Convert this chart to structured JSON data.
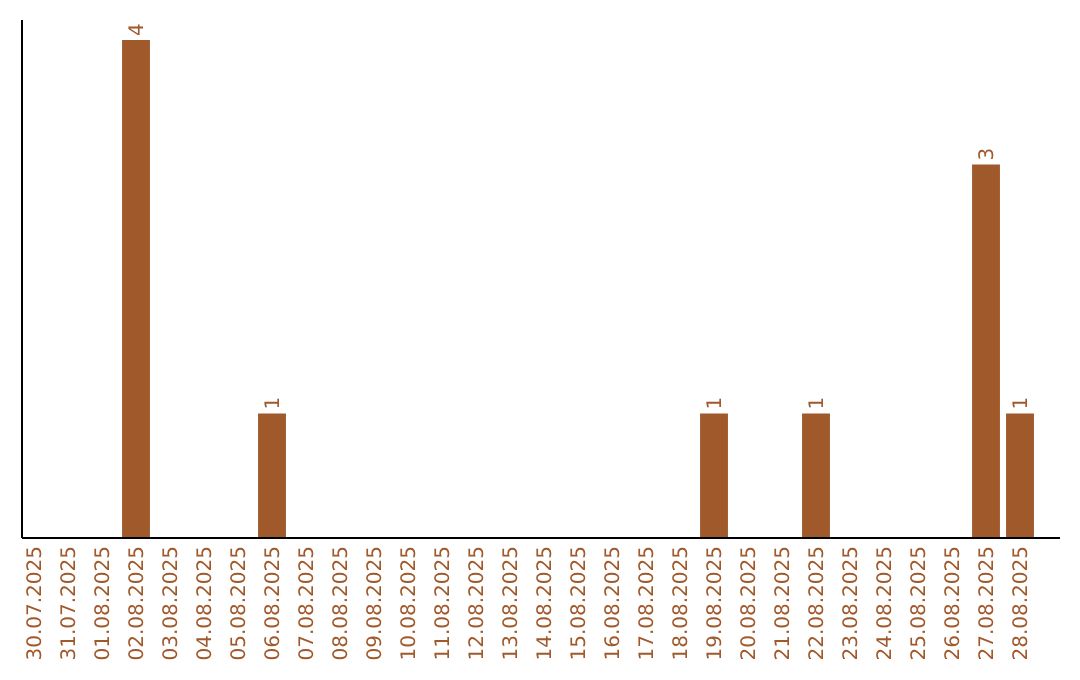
{
  "chart_data": {
    "type": "bar",
    "categories": [
      "30.07.2025",
      "31.07.2025",
      "01.08.2025",
      "02.08.2025",
      "03.08.2025",
      "04.08.2025",
      "05.08.2025",
      "06.08.2025",
      "07.08.2025",
      "08.08.2025",
      "09.08.2025",
      "10.08.2025",
      "11.08.2025",
      "12.08.2025",
      "13.08.2025",
      "14.08.2025",
      "15.08.2025",
      "16.08.2025",
      "17.08.2025",
      "18.08.2025",
      "19.08.2025",
      "20.08.2025",
      "21.08.2025",
      "22.08.2025",
      "23.08.2025",
      "24.08.2025",
      "25.08.2025",
      "26.08.2025",
      "27.08.2025",
      "28.08.2025"
    ],
    "values": [
      0,
      0,
      0,
      4,
      0,
      0,
      0,
      1,
      0,
      0,
      0,
      0,
      0,
      0,
      0,
      0,
      0,
      0,
      0,
      0,
      1,
      0,
      0,
      1,
      0,
      0,
      0,
      0,
      3,
      1
    ],
    "value_labels": [
      null,
      null,
      null,
      "4",
      null,
      null,
      null,
      "1",
      null,
      null,
      null,
      null,
      null,
      null,
      null,
      null,
      null,
      null,
      null,
      null,
      "1",
      null,
      null,
      "1",
      null,
      null,
      null,
      null,
      "3",
      "1"
    ],
    "color": "#a0592b"
  }
}
